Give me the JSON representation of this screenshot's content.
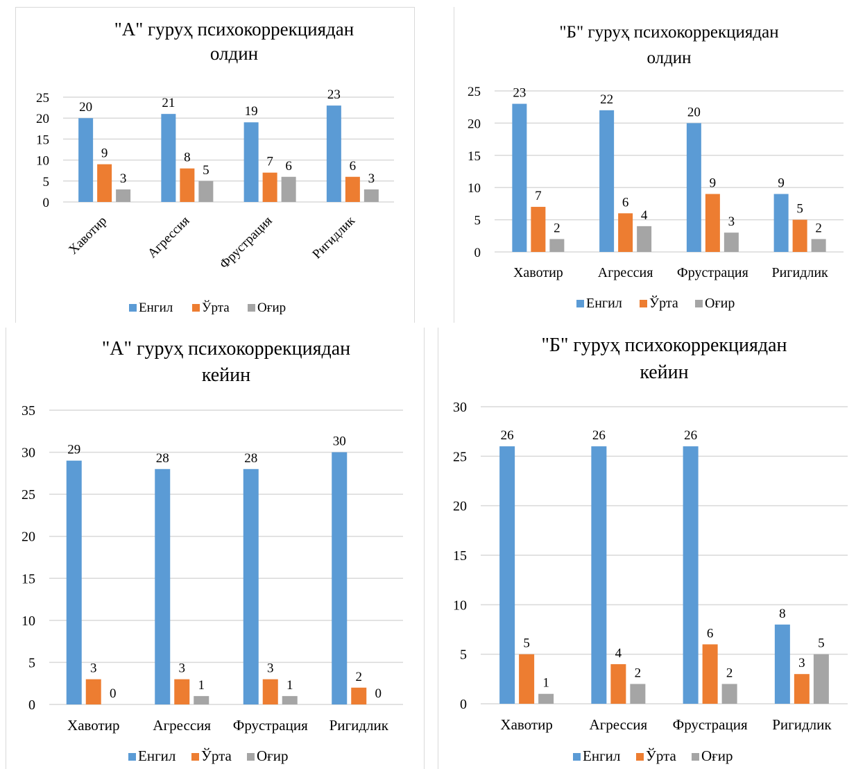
{
  "colors": {
    "Енгил": "#5b9bd5",
    "Ўрта": "#ed7d31",
    "Оғир": "#a5a5a5",
    "grid": "#d9d9d9",
    "text": "#000000"
  },
  "chart_data": [
    {
      "type": "bar",
      "title_lines": [
        "\"А\" гуруҳ психокоррекциядан",
        "олдин"
      ],
      "categories": [
        "Хавотир",
        "Агрессия",
        "Фрустрация",
        "Ригидлик"
      ],
      "series": [
        {
          "name": "Енгил",
          "values": [
            20,
            21,
            19,
            23
          ]
        },
        {
          "name": "Ўрта",
          "values": [
            9,
            8,
            7,
            6
          ]
        },
        {
          "name": "Оғир",
          "values": [
            3,
            5,
            6,
            3
          ]
        }
      ],
      "ylim": [
        0,
        25
      ],
      "yticks": [
        0,
        5,
        10,
        15,
        20,
        25
      ],
      "xlabel": "",
      "ylabel": "",
      "grid": true,
      "legend": "bottom",
      "x_labels_rotated": true
    },
    {
      "type": "bar",
      "title_lines": [
        "\"Б\" гуруҳ психокоррекциядан",
        "олдин"
      ],
      "categories": [
        "Хавотир",
        "Агрессия",
        "Фрустрация",
        "Ригидлик"
      ],
      "series": [
        {
          "name": "Енгил",
          "values": [
            23,
            22,
            20,
            9
          ]
        },
        {
          "name": "Ўрта",
          "values": [
            7,
            6,
            9,
            5
          ]
        },
        {
          "name": "Оғир",
          "values": [
            2,
            4,
            3,
            2
          ]
        }
      ],
      "ylim": [
        0,
        25
      ],
      "yticks": [
        0,
        5,
        10,
        15,
        20,
        25
      ],
      "xlabel": "",
      "ylabel": "",
      "grid": true,
      "legend": "bottom",
      "x_labels_rotated": false
    },
    {
      "type": "bar",
      "title_lines": [
        "\"А\" гуруҳ психокоррекциядан",
        "кейин"
      ],
      "categories": [
        "Хавотир",
        "Агрессия",
        "Фрустрация",
        "Ригидлик"
      ],
      "series": [
        {
          "name": "Енгил",
          "values": [
            29,
            28,
            28,
            30
          ]
        },
        {
          "name": "Ўрта",
          "values": [
            3,
            3,
            3,
            2
          ]
        },
        {
          "name": "Оғир",
          "values": [
            0,
            1,
            1,
            0
          ]
        }
      ],
      "ylim": [
        0,
        35
      ],
      "yticks": [
        0,
        5,
        10,
        15,
        20,
        25,
        30,
        35
      ],
      "xlabel": "",
      "ylabel": "",
      "grid": true,
      "legend": "bottom",
      "x_labels_rotated": false
    },
    {
      "type": "bar",
      "title_lines": [
        "\"Б\" гуруҳ психокоррекциядан",
        "кейин"
      ],
      "categories": [
        "Хавотир",
        "Агрессия",
        "Фрустрация",
        "Ригидлик"
      ],
      "series": [
        {
          "name": "Енгил",
          "values": [
            26,
            26,
            26,
            8
          ]
        },
        {
          "name": "Ўрта",
          "values": [
            5,
            4,
            6,
            3
          ]
        },
        {
          "name": "Оғир",
          "values": [
            1,
            2,
            2,
            5
          ]
        }
      ],
      "ylim": [
        0,
        30
      ],
      "yticks": [
        0,
        5,
        10,
        15,
        20,
        25,
        30
      ],
      "xlabel": "",
      "ylabel": "",
      "grid": true,
      "legend": "bottom",
      "x_labels_rotated": false
    }
  ]
}
